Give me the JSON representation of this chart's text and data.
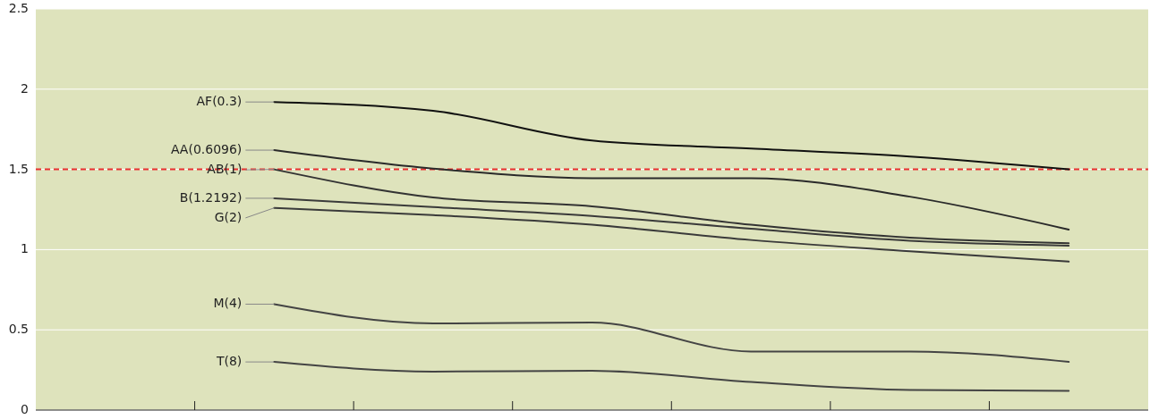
{
  "chart_data": {
    "type": "line",
    "categories": [
      null,
      null,
      null,
      null,
      null,
      null,
      null
    ],
    "series": [
      {
        "name": "AF(0.3)",
        "color": "#111111",
        "values": [
          null,
          1.92,
          1.865,
          1.68,
          1.63,
          1.58,
          1.5
        ]
      },
      {
        "name": "AA(0.6096)",
        "color": "#2a2a2a",
        "values": [
          null,
          1.62,
          1.505,
          1.445,
          1.445,
          1.33,
          1.125
        ]
      },
      {
        "name": "AB(1)",
        "color": "#333333",
        "values": [
          null,
          1.5,
          1.325,
          1.27,
          1.155,
          1.075,
          1.04
        ]
      },
      {
        "name": "B(1.2192)",
        "color": "#3a3a3a",
        "values": [
          null,
          1.32,
          1.265,
          1.21,
          1.13,
          1.055,
          1.025
        ]
      },
      {
        "name": "G(2)",
        "color": "#3a3a3a",
        "values": [
          null,
          1.26,
          1.215,
          1.155,
          1.06,
          0.99,
          0.925
        ]
      },
      {
        "name": "M(4)",
        "color": "#444444",
        "values": [
          null,
          0.66,
          0.54,
          0.545,
          0.365,
          0.365,
          0.3
        ]
      },
      {
        "name": "T(8)",
        "color": "#444444",
        "values": [
          null,
          0.3,
          0.24,
          0.245,
          0.175,
          0.125,
          0.12
        ]
      }
    ],
    "ylim": [
      0,
      2.5
    ],
    "yticks": [
      0,
      0.5,
      1,
      1.5,
      2,
      2.5
    ],
    "grid": "y",
    "legend": false,
    "marker": "none",
    "line_style": "solid",
    "ref_lines": [
      {
        "axis": "y",
        "value": 1.5,
        "color": "#e8312f",
        "line_style": "dashed"
      }
    ]
  }
}
